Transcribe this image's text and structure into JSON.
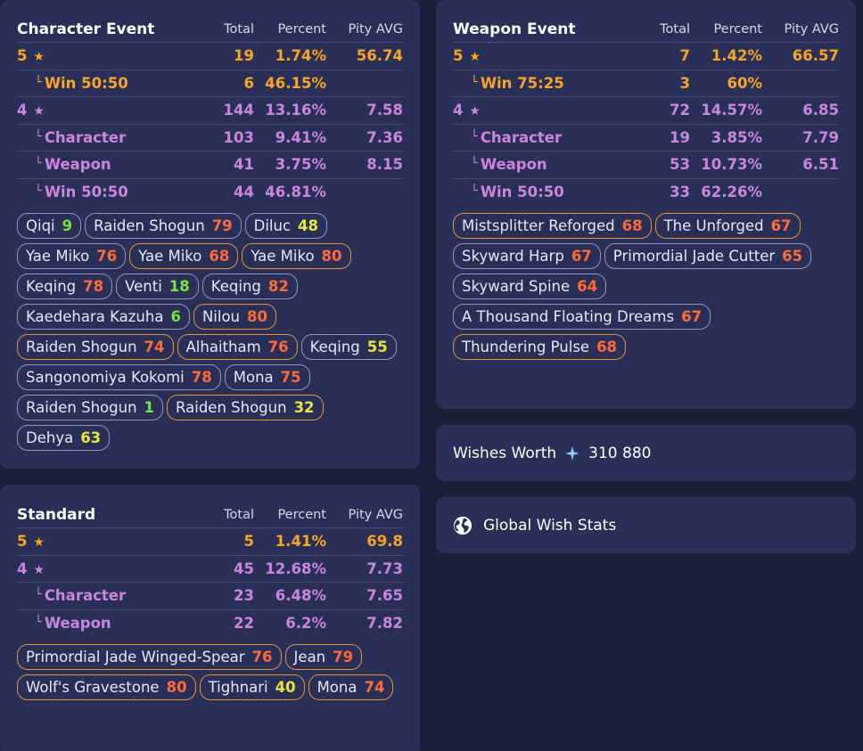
{
  "colors": {
    "gold": "#f6a623",
    "purple": "#c986dc",
    "won_border": "#e0933a",
    "pill_border": "#8f96b6"
  },
  "character_event": {
    "title": "Character Event",
    "headers": {
      "total": "Total",
      "percent": "Percent",
      "pity": "Pity AVG"
    },
    "rows": [
      {
        "label": "5",
        "star": "★",
        "total": "19",
        "percent": "1.74%",
        "pity": "56.74",
        "color": "gold",
        "sub": false
      },
      {
        "label": "Win 50:50",
        "total": "6",
        "percent": "46.15%",
        "pity": "",
        "color": "gold",
        "sub": true
      },
      {
        "label": "4",
        "star": "★",
        "total": "144",
        "percent": "13.16%",
        "pity": "7.58",
        "color": "purple",
        "sub": false
      },
      {
        "label": "Character",
        "total": "103",
        "percent": "9.41%",
        "pity": "7.36",
        "color": "purple",
        "sub": true
      },
      {
        "label": "Weapon",
        "total": "41",
        "percent": "3.75%",
        "pity": "8.15",
        "color": "purple",
        "sub": true
      },
      {
        "label": "Win 50:50",
        "total": "44",
        "percent": "46.81%",
        "pity": "",
        "color": "purple",
        "sub": true
      }
    ],
    "pulls": [
      {
        "name": "Qiqi",
        "pity": "9",
        "pity_color": "green",
        "won": false
      },
      {
        "name": "Raiden Shogun",
        "pity": "79",
        "pity_color": "orange",
        "won": false
      },
      {
        "name": "Diluc",
        "pity": "48",
        "pity_color": "yellow",
        "won": false
      },
      {
        "name": "Yae Miko",
        "pity": "76",
        "pity_color": "orange",
        "won": false
      },
      {
        "name": "Yae Miko",
        "pity": "68",
        "pity_color": "orange",
        "won": true
      },
      {
        "name": "Yae Miko",
        "pity": "80",
        "pity_color": "orange",
        "won": true
      },
      {
        "name": "Keqing",
        "pity": "78",
        "pity_color": "orange",
        "won": false
      },
      {
        "name": "Venti",
        "pity": "18",
        "pity_color": "green",
        "won": false
      },
      {
        "name": "Keqing",
        "pity": "82",
        "pity_color": "orange",
        "won": false
      },
      {
        "name": "Kaedehara Kazuha",
        "pity": "6",
        "pity_color": "green",
        "won": false
      },
      {
        "name": "Nilou",
        "pity": "80",
        "pity_color": "orange",
        "won": true
      },
      {
        "name": "Raiden Shogun",
        "pity": "74",
        "pity_color": "orange",
        "won": true
      },
      {
        "name": "Alhaitham",
        "pity": "76",
        "pity_color": "orange",
        "won": true
      },
      {
        "name": "Keqing",
        "pity": "55",
        "pity_color": "yellow",
        "won": false
      },
      {
        "name": "Sangonomiya Kokomi",
        "pity": "78",
        "pity_color": "orange",
        "won": false
      },
      {
        "name": "Mona",
        "pity": "75",
        "pity_color": "orange",
        "won": false
      },
      {
        "name": "Raiden Shogun",
        "pity": "1",
        "pity_color": "green",
        "won": false
      },
      {
        "name": "Raiden Shogun",
        "pity": "32",
        "pity_color": "yellow",
        "won": true
      },
      {
        "name": "Dehya",
        "pity": "63",
        "pity_color": "yellow",
        "won": false
      }
    ]
  },
  "weapon_event": {
    "title": "Weapon Event",
    "headers": {
      "total": "Total",
      "percent": "Percent",
      "pity": "Pity AVG"
    },
    "rows": [
      {
        "label": "5",
        "star": "★",
        "total": "7",
        "percent": "1.42%",
        "pity": "66.57",
        "color": "gold",
        "sub": false
      },
      {
        "label": "Win 75:25",
        "total": "3",
        "percent": "60%",
        "pity": "",
        "color": "gold",
        "sub": true
      },
      {
        "label": "4",
        "star": "★",
        "total": "72",
        "percent": "14.57%",
        "pity": "6.85",
        "color": "purple",
        "sub": false
      },
      {
        "label": "Character",
        "total": "19",
        "percent": "3.85%",
        "pity": "7.79",
        "color": "purple",
        "sub": true
      },
      {
        "label": "Weapon",
        "total": "53",
        "percent": "10.73%",
        "pity": "6.51",
        "color": "purple",
        "sub": true
      },
      {
        "label": "Win 50:50",
        "total": "33",
        "percent": "62.26%",
        "pity": "",
        "color": "purple",
        "sub": true
      }
    ],
    "pulls": [
      {
        "name": "Mistsplitter Reforged",
        "pity": "68",
        "pity_color": "orange",
        "won": true
      },
      {
        "name": "The Unforged",
        "pity": "67",
        "pity_color": "orange",
        "won": true
      },
      {
        "name": "Skyward Harp",
        "pity": "67",
        "pity_color": "orange",
        "won": false
      },
      {
        "name": "Primordial Jade Cutter",
        "pity": "65",
        "pity_color": "orange",
        "won": false
      },
      {
        "name": "Skyward Spine",
        "pity": "64",
        "pity_color": "orange",
        "won": false
      },
      {
        "name": "A Thousand Floating Dreams",
        "pity": "67",
        "pity_color": "orange",
        "won": false
      },
      {
        "name": "Thundering Pulse",
        "pity": "68",
        "pity_color": "orange",
        "won": true
      }
    ]
  },
  "standard": {
    "title": "Standard",
    "headers": {
      "total": "Total",
      "percent": "Percent",
      "pity": "Pity AVG"
    },
    "rows": [
      {
        "label": "5",
        "star": "★",
        "total": "5",
        "percent": "1.41%",
        "pity": "69.8",
        "color": "gold",
        "sub": false
      },
      {
        "label": "4",
        "star": "★",
        "total": "45",
        "percent": "12.68%",
        "pity": "7.73",
        "color": "purple",
        "sub": false
      },
      {
        "label": "Character",
        "total": "23",
        "percent": "6.48%",
        "pity": "7.65",
        "color": "purple",
        "sub": true
      },
      {
        "label": "Weapon",
        "total": "22",
        "percent": "6.2%",
        "pity": "7.82",
        "color": "purple",
        "sub": true
      }
    ],
    "pulls": [
      {
        "name": "Primordial Jade Winged-Spear",
        "pity": "76",
        "pity_color": "orange",
        "won": true
      },
      {
        "name": "Jean",
        "pity": "79",
        "pity_color": "orange",
        "won": true
      },
      {
        "name": "Wolf's Gravestone",
        "pity": "80",
        "pity_color": "orange",
        "won": true
      },
      {
        "name": "Tighnari",
        "pity": "40",
        "pity_color": "yellow",
        "won": true
      },
      {
        "name": "Mona",
        "pity": "74",
        "pity_color": "orange",
        "won": true
      }
    ]
  },
  "wishes_worth": {
    "label": "Wishes Worth",
    "icon": "sparkle-icon",
    "value": "310 880"
  },
  "global_stats": {
    "label": "Global Wish Stats",
    "icon": "globe-icon"
  }
}
